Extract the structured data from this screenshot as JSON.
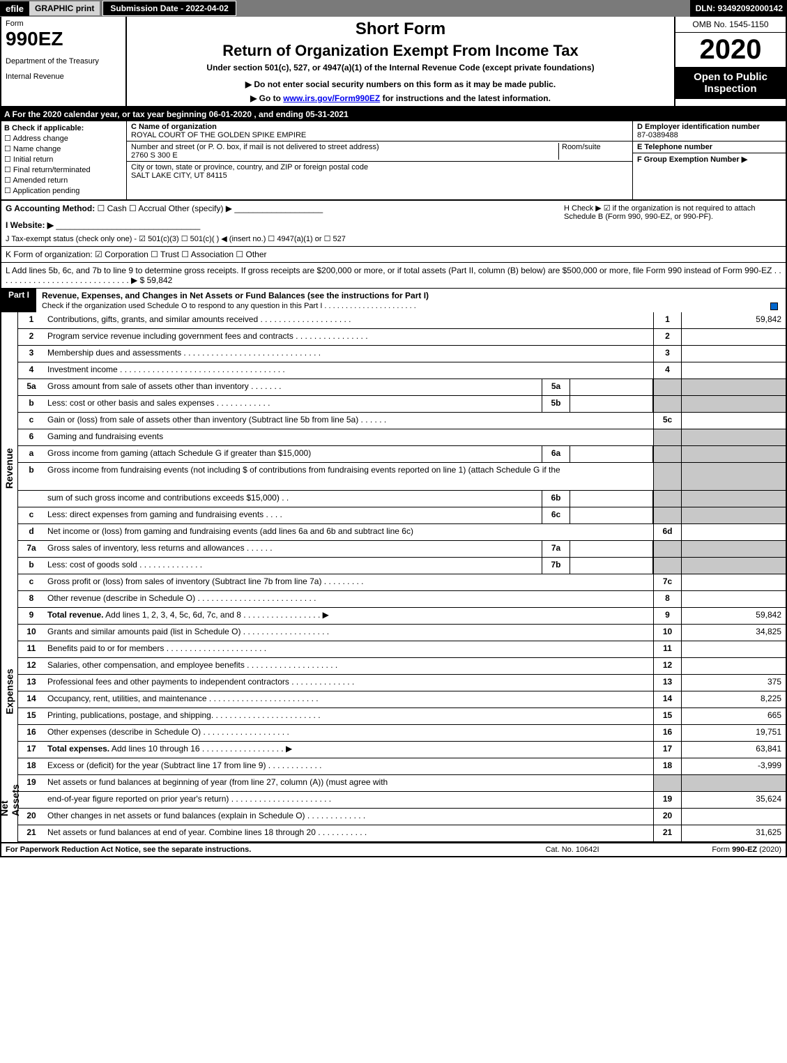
{
  "top": {
    "efile": "efile",
    "graphic": "GRAPHIC",
    "print": "print",
    "submission": "Submission Date - 2022-04-02",
    "dln": "DLN: 93492092000142"
  },
  "header": {
    "form": "Form",
    "number": "990EZ",
    "dept": "Department of the Treasury",
    "irs": "Internal Revenue",
    "short": "Short Form",
    "title": "Return of Organization Exempt From Income Tax",
    "under": "Under section 501(c), 527, or 4947(a)(1) of the Internal Revenue Code (except private foundations)",
    "donot": "▶ Do not enter social security numbers on this form as it may be made public.",
    "goto_prefix": "▶ Go to ",
    "goto_link": "www.irs.gov/Form990EZ",
    "goto_suffix": " for instructions and the latest information.",
    "omb": "OMB No. 1545-1150",
    "year": "2020",
    "open": "Open to Public Inspection"
  },
  "lineA": "A For the 2020 calendar year, or tax year beginning 06-01-2020 , and ending 05-31-2021",
  "sectionB": {
    "title": "B  Check if applicable:",
    "opts": [
      "Address change",
      "Name change",
      "Initial return",
      "Final return/terminated",
      "Amended return",
      "Application pending"
    ]
  },
  "org": {
    "c_label": "C Name of organization",
    "name": "ROYAL COURT OF THE GOLDEN SPIKE EMPIRE",
    "street_label": "Number and street (or P. O. box, if mail is not delivered to street address)",
    "room_label": "Room/suite",
    "street": "2760 S 300 E",
    "city_label": "City or town, state or province, country, and ZIP or foreign postal code",
    "city": "SALT LAKE CITY, UT  84115"
  },
  "right": {
    "d_label": "D Employer identification number",
    "ein": "87-0389488",
    "e_label": "E Telephone number",
    "f_label": "F Group Exemption Number  ▶"
  },
  "g": {
    "label": "G Accounting Method:",
    "opts": "☐ Cash  ☐ Accrual  Other (specify) ▶",
    "h_text": "H  Check ▶ ☑ if the organization is not required to attach Schedule B (Form 990, 990-EZ, or 990-PF)."
  },
  "i": "I Website: ▶",
  "j": "J Tax-exempt status (check only one) - ☑ 501(c)(3) ☐ 501(c)(  ) ◀ (insert no.) ☐ 4947(a)(1) or ☐ 527",
  "k": "K Form of organization: ☑ Corporation  ☐ Trust  ☐ Association  ☐ Other",
  "l": {
    "text": "L Add lines 5b, 6c, and 7b to line 9 to determine gross receipts. If gross receipts are $200,000 or more, or if total assets (Part II, column (B) below) are $500,000 or more, file Form 990 instead of Form 990-EZ  .  .  .  .  .  .  .  .  .  .  .  .  .  .  .  .  .  .  .  .  .  .  .  .  .  .  .  .  . ▶ $",
    "amount": "59,842"
  },
  "part1": {
    "label": "Part I",
    "title": "Revenue, Expenses, and Changes in Net Assets or Fund Balances (see the instructions for Part I)",
    "sub": "Check if the organization used Schedule O to respond to any question in this Part I .  .  .  .  .  .  .  .  .  .  .  .  .  .  .  .  .  .  .  .  .  ."
  },
  "sections": {
    "revenue": "Revenue",
    "expenses": "Expenses",
    "netassets": "Net Assets"
  },
  "rows": [
    {
      "n": "1",
      "d": "Contributions, gifts, grants, and similar amounts received .  .  .  .  .  .  .  .  .  .  .  .  .  .  .  .  .  .  .  .",
      "r": "1",
      "v": "59,842"
    },
    {
      "n": "2",
      "d": "Program service revenue including government fees and contracts .  .  .  .  .  .  .  .  .  .  .  .  .  .  .  .",
      "r": "2",
      "v": ""
    },
    {
      "n": "3",
      "d": "Membership dues and assessments .  .  .  .  .  .  .  .  .  .  .  .  .  .  .  .  .  .  .  .  .  .  .  .  .  .  .  .  .  .",
      "r": "3",
      "v": ""
    },
    {
      "n": "4",
      "d": "Investment income .  .  .  .  .  .  .  .  .  .  .  .  .  .  .  .  .  .  .  .  .  .  .  .  .  .  .  .  .  .  .  .  .  .  .  .",
      "r": "4",
      "v": ""
    },
    {
      "n": "5a",
      "d": "Gross amount from sale of assets other than inventory .  .  .  .  .  .  .",
      "m": "5a",
      "shaded": true
    },
    {
      "n": "b",
      "d": "Less: cost or other basis and sales expenses .  .  .  .  .  .  .  .  .  .  .  .",
      "m": "5b",
      "shaded": true
    },
    {
      "n": "c",
      "d": "Gain or (loss) from sale of assets other than inventory (Subtract line 5b from line 5a) .  .  .  .  .  .",
      "r": "5c",
      "v": ""
    },
    {
      "n": "6",
      "d": "Gaming and fundraising events",
      "shaded": true,
      "noright": true
    },
    {
      "n": "a",
      "d": "Gross income from gaming (attach Schedule G if greater than $15,000)",
      "m": "6a",
      "shaded": true
    },
    {
      "n": "b",
      "d": "Gross income from fundraising events (not including $                    of contributions from fundraising events reported on line 1) (attach Schedule G if the",
      "shaded": true,
      "noright": true,
      "tall": true
    },
    {
      "n": "",
      "d": "sum of such gross income and contributions exceeds $15,000)   .   .",
      "m": "6b",
      "shaded": true
    },
    {
      "n": "c",
      "d": "Less: direct expenses from gaming and fundraising events   .  .  .  .",
      "m": "6c",
      "shaded": true
    },
    {
      "n": "d",
      "d": "Net income or (loss) from gaming and fundraising events (add lines 6a and 6b and subtract line 6c)",
      "r": "6d",
      "v": ""
    },
    {
      "n": "7a",
      "d": "Gross sales of inventory, less returns and allowances .  .  .  .  .  .",
      "m": "7a",
      "shaded": true
    },
    {
      "n": "b",
      "d": "Less: cost of goods sold        .   .   .   .   .   .   .   .   .   .   .   .   .   .",
      "m": "7b",
      "shaded": true
    },
    {
      "n": "c",
      "d": "Gross profit or (loss) from sales of inventory (Subtract line 7b from line 7a) .  .  .  .  .  .  .  .  .",
      "r": "7c",
      "v": ""
    },
    {
      "n": "8",
      "d": "Other revenue (describe in Schedule O) .  .  .  .  .  .  .  .  .  .  .  .  .  .  .  .  .  .  .  .  .  .  .  .  .  .",
      "r": "8",
      "v": ""
    },
    {
      "n": "9",
      "d": "Total revenue. Add lines 1, 2, 3, 4, 5c, 6d, 7c, and 8  .  .  .  .  .  .  .  .  .  .  .  .  .  .  .  .  .  ▶",
      "r": "9",
      "v": "59,842",
      "bold": true
    }
  ],
  "exp_rows": [
    {
      "n": "10",
      "d": "Grants and similar amounts paid (list in Schedule O) .  .  .  .  .  .  .  .  .  .  .  .  .  .  .  .  .  .  .",
      "r": "10",
      "v": "34,825"
    },
    {
      "n": "11",
      "d": "Benefits paid to or for members       .   .   .   .   .   .   .   .   .   .   .   .   .   .   .   .   .   .   .   .   .   .",
      "r": "11",
      "v": ""
    },
    {
      "n": "12",
      "d": "Salaries, other compensation, and employee benefits .  .  .  .  .  .  .  .  .  .  .  .  .  .  .  .  .  .  .  .",
      "r": "12",
      "v": ""
    },
    {
      "n": "13",
      "d": "Professional fees and other payments to independent contractors .  .  .  .  .  .  .  .  .  .  .  .  .  .",
      "r": "13",
      "v": "375"
    },
    {
      "n": "14",
      "d": "Occupancy, rent, utilities, and maintenance .  .  .  .  .  .  .  .  .  .  .  .  .  .  .  .  .  .  .  .  .  .  .  .",
      "r": "14",
      "v": "8,225"
    },
    {
      "n": "15",
      "d": "Printing, publications, postage, and shipping.  .  .  .  .  .  .  .  .  .  .  .  .  .  .  .  .  .  .  .  .  .  .  .",
      "r": "15",
      "v": "665"
    },
    {
      "n": "16",
      "d": "Other expenses (describe in Schedule O)      .   .   .   .   .   .   .   .   .   .   .   .   .   .   .   .   .   .   .",
      "r": "16",
      "v": "19,751"
    },
    {
      "n": "17",
      "d": "Total expenses. Add lines 10 through 16       .   .   .   .   .   .   .   .   .   .   .   .   .   .   .   .   .   .  ▶",
      "r": "17",
      "v": "63,841",
      "bold": true
    }
  ],
  "na_rows": [
    {
      "n": "18",
      "d": "Excess or (deficit) for the year (Subtract line 17 from line 9)        .   .   .   .   .   .   .   .   .   .   .   .",
      "r": "18",
      "v": "-3,999"
    },
    {
      "n": "19",
      "d": "Net assets or fund balances at beginning of year (from line 27, column (A)) (must agree with",
      "shaded": true,
      "noright": true
    },
    {
      "n": "",
      "d": "end-of-year figure reported on prior year's return) .  .  .  .  .  .  .  .  .  .  .  .  .  .  .  .  .  .  .  .  .  .",
      "r": "19",
      "v": "35,624"
    },
    {
      "n": "20",
      "d": "Other changes in net assets or fund balances (explain in Schedule O) .  .  .  .  .  .  .  .  .  .  .  .  .",
      "r": "20",
      "v": ""
    },
    {
      "n": "21",
      "d": "Net assets or fund balances at end of year. Combine lines 18 through 20 .  .  .  .  .  .  .  .  .  .  .",
      "r": "21",
      "v": "31,625"
    }
  ],
  "footer": {
    "left": "For Paperwork Reduction Act Notice, see the separate instructions.",
    "mid": "Cat. No. 10642I",
    "right": "Form 990-EZ (2020)"
  },
  "colors": {
    "black": "#000000",
    "shaded": "#c8c8c8",
    "link": "#0000ee",
    "checkbox": "#0066cc"
  }
}
